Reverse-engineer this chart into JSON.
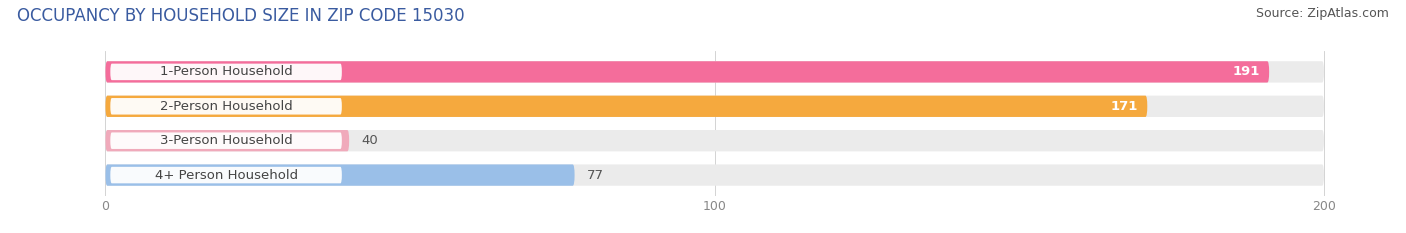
{
  "title": "OCCUPANCY BY HOUSEHOLD SIZE IN ZIP CODE 15030",
  "source": "Source: ZipAtlas.com",
  "categories": [
    "1-Person Household",
    "2-Person Household",
    "3-Person Household",
    "4+ Person Household"
  ],
  "values": [
    191,
    171,
    40,
    77
  ],
  "bar_colors": [
    "#F46D9B",
    "#F5A93E",
    "#F0AABB",
    "#9ABFE8"
  ],
  "track_color": "#EBEBEB",
  "label_bg_color": "#FFFFFF",
  "xlim": [
    -15,
    210
  ],
  "x_max": 200,
  "xticks": [
    0,
    100,
    200
  ],
  "background_color": "#FFFFFF",
  "title_fontsize": 12,
  "source_fontsize": 9,
  "bar_label_fontsize": 9.5,
  "category_fontsize": 9.5,
  "bar_height": 0.62,
  "fig_width": 14.06,
  "fig_height": 2.33,
  "title_color": "#3A5BA0",
  "source_color": "#555555",
  "value_color_inside": "#FFFFFF",
  "value_color_outside": "#555555",
  "label_text_color": "#444444",
  "tick_color": "#888888"
}
